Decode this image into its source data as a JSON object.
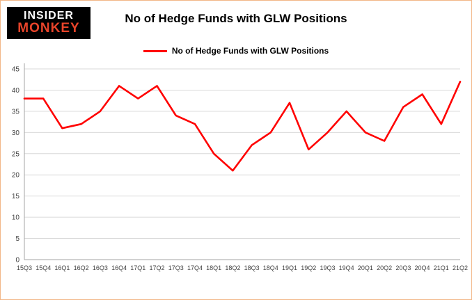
{
  "logo": {
    "line1": "INSIDER",
    "line2": "MONKEY"
  },
  "header": {
    "title": "No of Hedge Funds with GLW Positions"
  },
  "legend": {
    "label": "No of Hedge Funds with GLW Positions",
    "color": "#ff0000"
  },
  "chart_data": {
    "type": "line",
    "title": "No of Hedge Funds with GLW Positions",
    "categories": [
      "15Q3",
      "15Q4",
      "16Q1",
      "16Q2",
      "16Q3",
      "16Q4",
      "17Q1",
      "17Q2",
      "17Q3",
      "17Q4",
      "18Q1",
      "18Q2",
      "18Q3",
      "18Q4",
      "19Q1",
      "19Q2",
      "19Q3",
      "19Q4",
      "20Q1",
      "20Q2",
      "20Q3",
      "20Q4",
      "21Q1",
      "21Q2"
    ],
    "series": [
      {
        "name": "No of Hedge Funds with GLW Positions",
        "color": "#ff0000",
        "values": [
          38,
          38,
          31,
          32,
          35,
          41,
          38,
          41,
          34,
          32,
          25,
          21,
          27,
          30,
          37,
          26,
          30,
          35,
          30,
          28,
          36,
          39,
          32,
          42
        ]
      }
    ],
    "ylim": [
      0,
      45
    ],
    "ytick_step": 5,
    "grid": true,
    "legend_position": "top",
    "grid_color": "#d9d9d9",
    "axis_color": "#a6a6a6",
    "tick_label_color": "#404040"
  }
}
